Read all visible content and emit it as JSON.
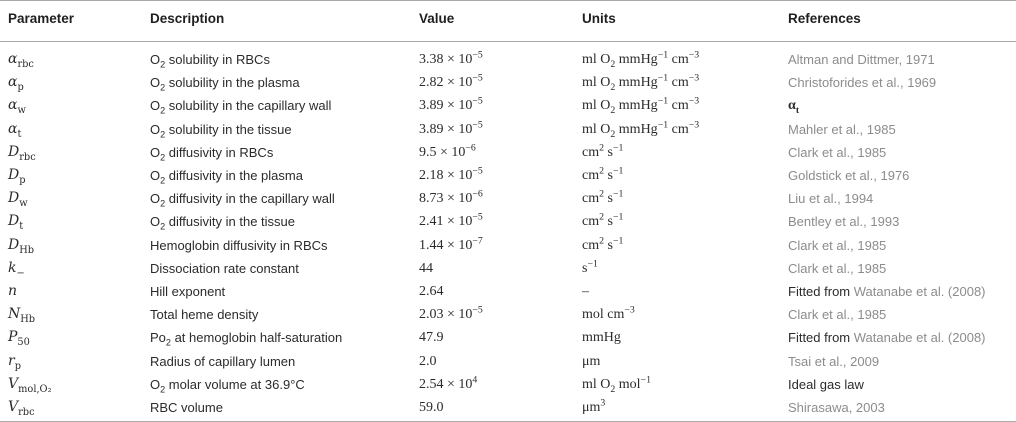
{
  "headers": {
    "parameter": "Parameter",
    "description": "Description",
    "value": "Value",
    "units": "Units",
    "references": "References"
  },
  "rows": [
    {
      "sym": "α",
      "sub": "rbc",
      "desc_pre": "O",
      "desc_sub": "2",
      "desc_post": " solubility in RBCs",
      "val_mant": "3.38 × 10",
      "val_exp": "−5",
      "unit_html": "ml O<sub>2</sub> mmHg<sup>−1</sup> cm<sup>−3</sup>",
      "ref": "Altman and Dittmer, 1971",
      "ref_style": "grey"
    },
    {
      "sym": "α",
      "sub": "p",
      "desc_pre": "O",
      "desc_sub": "2",
      "desc_post": " solubility in the plasma",
      "val_mant": "2.82 × 10",
      "val_exp": "−5",
      "unit_html": "ml O<sub>2</sub> mmHg<sup>−1</sup> cm<sup>−3</sup>",
      "ref": "Christoforides et al., 1969",
      "ref_style": "grey"
    },
    {
      "sym": "α",
      "sub": "w",
      "desc_pre": "O",
      "desc_sub": "2",
      "desc_post": " solubility in the capillary wall",
      "val_mant": "3.89 × 10",
      "val_exp": "−5",
      "unit_html": "ml O<sub>2</sub> mmHg<sup>−1</sup> cm<sup>−3</sup>",
      "ref": "α",
      "ref_sub": "t",
      "ref_style": "sym"
    },
    {
      "sym": "α",
      "sub": "t",
      "desc_pre": "O",
      "desc_sub": "2",
      "desc_post": " solubility in the tissue",
      "val_mant": "3.89 × 10",
      "val_exp": "−5",
      "unit_html": "ml O<sub>2</sub> mmHg<sup>−1</sup> cm<sup>−3</sup>",
      "ref": "Mahler et al., 1985",
      "ref_style": "grey"
    },
    {
      "sym": "D",
      "sub": "rbc",
      "desc_pre": "O",
      "desc_sub": "2",
      "desc_post": " diffusivity in RBCs",
      "val_mant": "9.5 × 10",
      "val_exp": "−6",
      "unit_html": "cm<sup>2</sup> s<sup>−1</sup>",
      "ref": "Clark et al., 1985",
      "ref_style": "grey"
    },
    {
      "sym": "D",
      "sub": "p",
      "desc_pre": "O",
      "desc_sub": "2",
      "desc_post": " diffusivity in the plasma",
      "val_mant": "2.18 × 10",
      "val_exp": "−5",
      "unit_html": "cm<sup>2</sup> s<sup>−1</sup>",
      "ref": "Goldstick et al., 1976",
      "ref_style": "grey"
    },
    {
      "sym": "D",
      "sub": "w",
      "desc_pre": "O",
      "desc_sub": "2",
      "desc_post": " diffusivity in the capillary wall",
      "val_mant": "8.73 × 10",
      "val_exp": "−6",
      "unit_html": "cm<sup>2</sup> s<sup>−1</sup>",
      "ref": "Liu et al., 1994",
      "ref_style": "grey"
    },
    {
      "sym": "D",
      "sub": "t",
      "desc_pre": "O",
      "desc_sub": "2",
      "desc_post": " diffusivity in the tissue",
      "val_mant": "2.41 × 10",
      "val_exp": "−5",
      "unit_html": "cm<sup>2</sup> s<sup>−1</sup>",
      "ref": "Bentley et al., 1993",
      "ref_style": "grey"
    },
    {
      "sym": "D",
      "sub": "Hb",
      "desc_pre": "Hemoglobin diffusivity in RBCs",
      "desc_sub": "",
      "desc_post": "",
      "val_mant": "1.44 × 10",
      "val_exp": "−7",
      "unit_html": "cm<sup>2</sup> s<sup>−1</sup>",
      "ref": "Clark et al., 1985",
      "ref_style": "grey"
    },
    {
      "sym": "k",
      "sub": "−",
      "desc_pre": "Dissociation rate constant",
      "desc_sub": "",
      "desc_post": "",
      "val_mant": "44",
      "val_exp": "",
      "unit_html": "s<sup>−1</sup>",
      "ref": "Clark et al., 1985",
      "ref_style": "grey"
    },
    {
      "sym": "n",
      "sub": "",
      "desc_pre": "Hill exponent",
      "desc_sub": "",
      "desc_post": "",
      "val_mant": "2.64",
      "val_exp": "",
      "unit_html": "–",
      "ref_pre": "Fitted from ",
      "ref": "Watanabe et al. (2008)",
      "ref_style": "mixed"
    },
    {
      "sym": "N",
      "sub": "Hb",
      "desc_pre": "Total heme density",
      "desc_sub": "",
      "desc_post": "",
      "val_mant": "2.03 × 10",
      "val_exp": "−5",
      "unit_html": "mol cm<sup>−3</sup>",
      "ref": "Clark et al., 1985",
      "ref_style": "grey"
    },
    {
      "sym": "P",
      "sub": "50",
      "desc_pre": "Po",
      "desc_sub": "2",
      "desc_post": " at hemoglobin half-saturation",
      "val_mant": "47.9",
      "val_exp": "",
      "unit_html": "mmHg",
      "ref_pre": "Fitted from ",
      "ref": "Watanabe et al. (2008)",
      "ref_style": "mixed"
    },
    {
      "sym": "r",
      "sub": "p",
      "desc_pre": "Radius of capillary lumen",
      "desc_sub": "",
      "desc_post": "",
      "val_mant": "2.0",
      "val_exp": "",
      "unit_html": "μm",
      "ref": "Tsai et al., 2009",
      "ref_style": "grey"
    },
    {
      "sym": "V",
      "sub": "mol,O₂",
      "desc_pre": "O",
      "desc_sub": "2",
      "desc_post": " molar volume at 36.9°C",
      "val_mant": "2.54 × 10",
      "val_exp": "4",
      "unit_html": "ml O<sub>2</sub> mol<sup>−1</sup>",
      "ref": "Ideal gas law",
      "ref_style": "dark"
    },
    {
      "sym": "V",
      "sub": "rbc",
      "desc_pre": "RBC volume",
      "desc_sub": "",
      "desc_post": "",
      "val_mant": "59.0",
      "val_exp": "",
      "unit_html": "μm<sup>3</sup>",
      "ref": "Shirasawa, 2003",
      "ref_style": "grey"
    }
  ]
}
